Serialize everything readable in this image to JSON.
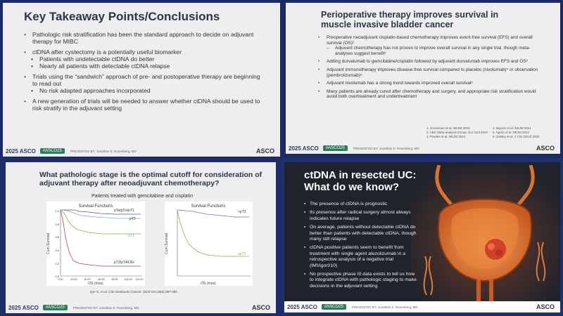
{
  "colors": {
    "dark_slide": "#20232b",
    "accent_orange": "#e06b2a",
    "footer_green": "#2e7d5a",
    "tile_blue": "#1a2a64"
  },
  "slide1": {
    "title": "Key Takeaway Points/Conclusions",
    "bullets": [
      {
        "text": "Pathologic risk stratification has been the standard approach to decide on adjuvant therapy for MIBC",
        "subs": []
      },
      {
        "text": "ctDNA after cystectomy is a potentially useful biomarker",
        "subs": [
          "Patients with undetectable ctDNA do better",
          "Nearly all patients with detectable ctDNA relapse"
        ]
      },
      {
        "text": "Trials using the “sandwich” approach of pre- and postoperative therapy are beginning to read out",
        "subs": [
          "No risk adapted approaches incorporated"
        ]
      },
      {
        "text": "A new generation of trials will be needed to answer whether ctDNA should be used to risk stratify in the adjuvant setting",
        "subs": []
      }
    ],
    "footer": {
      "year": "2025 ASCO",
      "meeting": "ANNUAL MEETING",
      "tag": "#ASCO25",
      "presenter": "PRESENTED BY: Jonathan E. Rosenberg, MD",
      "logo": "ASCO"
    }
  },
  "slide2": {
    "title": "Perioperative therapy improves survival in muscle invasive bladder cancer",
    "bullets": [
      {
        "text": "Preoperative neoadjuvant cisplatin-based chemotherapy improves event-free survival (EFS) and overall survival (OS)¹",
        "subs": [
          "Adjuvant chemotherapy has not proven to improve overall survival in any single trial, though meta-analyses suggest benefit²"
        ]
      },
      {
        "text": "Adding durvalumab to gemcitabine/cisplatin followed by adjuvant durvalumab improves EFS and OS³",
        "subs": []
      },
      {
        "text": "Adjuvant immunotherapy improves disease-free survival compared to placebo (nivolumab)⁴ or observation (pembrolizumab)⁵",
        "subs": []
      },
      {
        "text": "Adjuvant nivolumab has a strong trend towards improved overall survival⁶",
        "subs": []
      },
      {
        "text": "Many patients are already cured after chemotherapy and surgery, and appropriate risk stratification would avoid both overtreatment and undertreatment",
        "subs": []
      }
    ],
    "refs_left": [
      "1. Grossman et al. NEJM 2003",
      "2. ABC Meta-analysis Group. Eur Urol 2022",
      "3. Powles et al. NEJM 2024"
    ],
    "refs_right": [
      "4. Bajorin et al. NEJM 2021",
      "5. Apolo et al. NEJM 2024",
      "6. Galsky et al. J Clin Oncol 2025"
    ],
    "footer": {
      "year": "2025 ASCO",
      "meeting": "ANNUAL MEETING",
      "tag": "#ASCO25",
      "presenter": "PRESENTED BY: Jonathan E. Rosenberg, MD",
      "logo": "ASCO"
    }
  },
  "slide3": {
    "title": "What pathologic stage is the optimal cutoff for consideration of adjuvant therapy after neoadjuvant chemotherapy?",
    "subtitle": "Patients treated with gemcitabine and cisplatin",
    "plot_title": "Survival Functions",
    "ylabel": "Cum Survival",
    "xlabel": "OS (mos)",
    "ytick_labels": [
      "1.0",
      "0.8",
      "0.6",
      "0.4",
      "0.2",
      "0.0"
    ],
    "xtick_labels": [
      "0.00",
      "20.00",
      "40.00",
      "60.00",
      "80.00",
      "100.00",
      "120.00"
    ],
    "left_series": [
      "pTa/pTis/pT1",
      "pT0",
      "pT2",
      "pT3/pT4/LN+"
    ],
    "right_series": [
      "<pT2",
      "≥pT2"
    ],
    "citation": "Iyer G, et al. Clin Genitourin Cancer. 2020 Oct;18(5):387-394.",
    "footer": {
      "year": "2025 ASCO",
      "meeting": "ANNUAL MEETING",
      "tag": "#ASCO25",
      "presenter": "PRESENTED BY: Jonathan E. Rosenberg, MD",
      "logo": "ASCO"
    }
  },
  "slide4": {
    "title": "ctDNA in resected UC: What do we know?",
    "bullets": [
      "The presence of ctDNA is prognostic",
      "Its presence after radical surgery almost always indicates future relapse",
      "On average, patients without detectable ctDNA do better than patients with detectable ctDNA, though many still relapse",
      "ctDNA positive patients seem to benefit from treatment with single agent atezolizumab in a retrospective analysis of a negative trial (IMVigor010)",
      "No prospective phase III data exists to tell us how to integrate ctDNA with pathologic staging to make decisions in the adjuvant setting"
    ],
    "footer": {
      "year": "2025 ASCO",
      "meeting": "ANNUAL MEETING",
      "tag": "#ASCO25",
      "presenter": "PRESENTED BY: Jonathan E. Rosenberg, MD",
      "logo": "ASCO"
    }
  }
}
